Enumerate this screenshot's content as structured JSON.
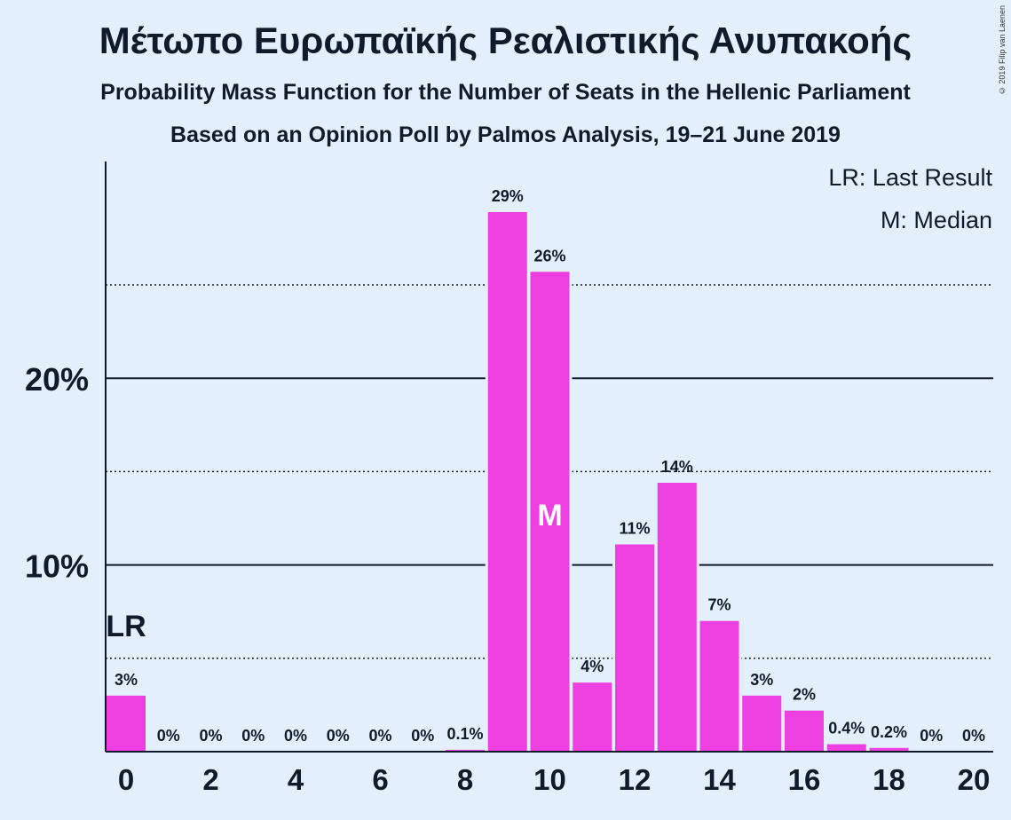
{
  "title": "Μέτωπο Ευρωπαϊκής Ρεαλιστικής Ανυπακοής",
  "subtitle": "Probability Mass Function for the Number of Seats in the Hellenic Parliament",
  "subtitle2": "Based on an Opinion Poll by Palmos Analysis, 19–21 June 2019",
  "copyright": "© 2019 Filip van Laenen",
  "legend": {
    "last_result": "LR: Last Result",
    "median": "M: Median"
  },
  "chart_data": {
    "type": "bar",
    "x": [
      0,
      1,
      2,
      3,
      4,
      5,
      6,
      7,
      8,
      9,
      10,
      11,
      12,
      13,
      14,
      15,
      16,
      17,
      18,
      19,
      20
    ],
    "values": [
      3.0,
      0,
      0,
      0,
      0,
      0,
      0,
      0,
      0.1,
      28.9,
      25.7,
      3.7,
      11.1,
      14.4,
      7.0,
      3.0,
      2.2,
      0.4,
      0.2,
      0,
      0
    ],
    "labels": [
      "3%",
      "0%",
      "0%",
      "0%",
      "0%",
      "0%",
      "0%",
      "0%",
      "0.1%",
      "29%",
      "26%",
      "4%",
      "11%",
      "14%",
      "7%",
      "3%",
      "2%",
      "0.4%",
      "0.2%",
      "0%",
      "0%"
    ],
    "x_tick_labels": [
      "0",
      "2",
      "4",
      "6",
      "8",
      "10",
      "12",
      "14",
      "16",
      "18",
      "20"
    ],
    "y_tick_labels": [
      "10%",
      "20%"
    ],
    "ylim": [
      0,
      30
    ],
    "last_result_seats": 0,
    "last_result_marker": "LR",
    "median_seats": 10,
    "median_marker": "M",
    "bar_color": "#ee3fe0",
    "background_color": "#e3f0fc"
  }
}
